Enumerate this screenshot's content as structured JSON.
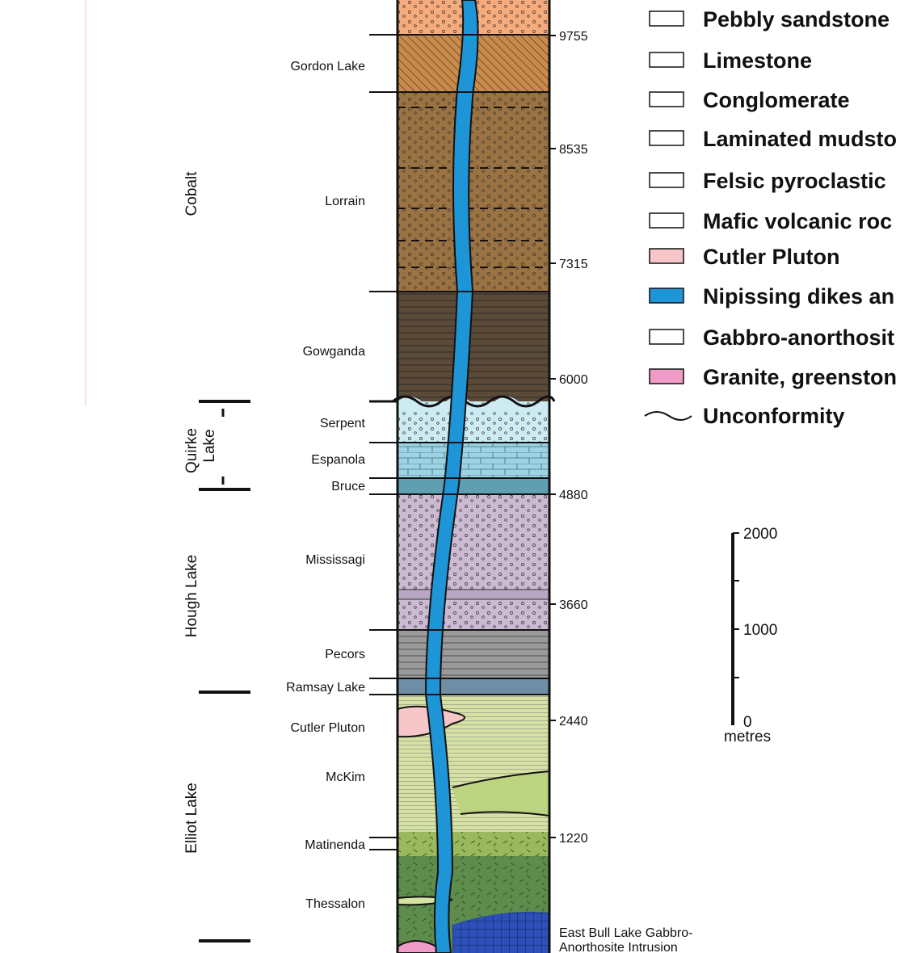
{
  "groups": [
    "Cobalt",
    "Quirke",
    "Lake",
    "Hough Lake",
    "Elliot Lake"
  ],
  "formations": [
    "Gordon Lake",
    "Lorrain",
    "Gowganda",
    "Serpent",
    "Espanola",
    "Bruce",
    "Mississagi",
    "Pecors",
    "Ramsay Lake",
    "Cutler Pluton",
    "McKim",
    "Matinenda",
    "Thessalon"
  ],
  "depth_labels": [
    9755,
    8535,
    7315,
    6000,
    4880,
    3660,
    2440,
    1220
  ],
  "intrusion_label": [
    "East Bull Lake Gabbro-",
    "Anorthosite Intrusion"
  ],
  "legend": [
    "Pebbly sandstone",
    "Limestone",
    "Conglomerate",
    "Laminated mudsto",
    "Felsic pyroclastic",
    "Mafic volcanic roc",
    "Cutler Pluton",
    "Nipissing dikes an",
    "Gabbro-anorthosit",
    "Granite, greenston",
    "Unconformity"
  ],
  "scale": {
    "ticks": [
      2000,
      1000,
      0
    ],
    "unit": "metres"
  }
}
